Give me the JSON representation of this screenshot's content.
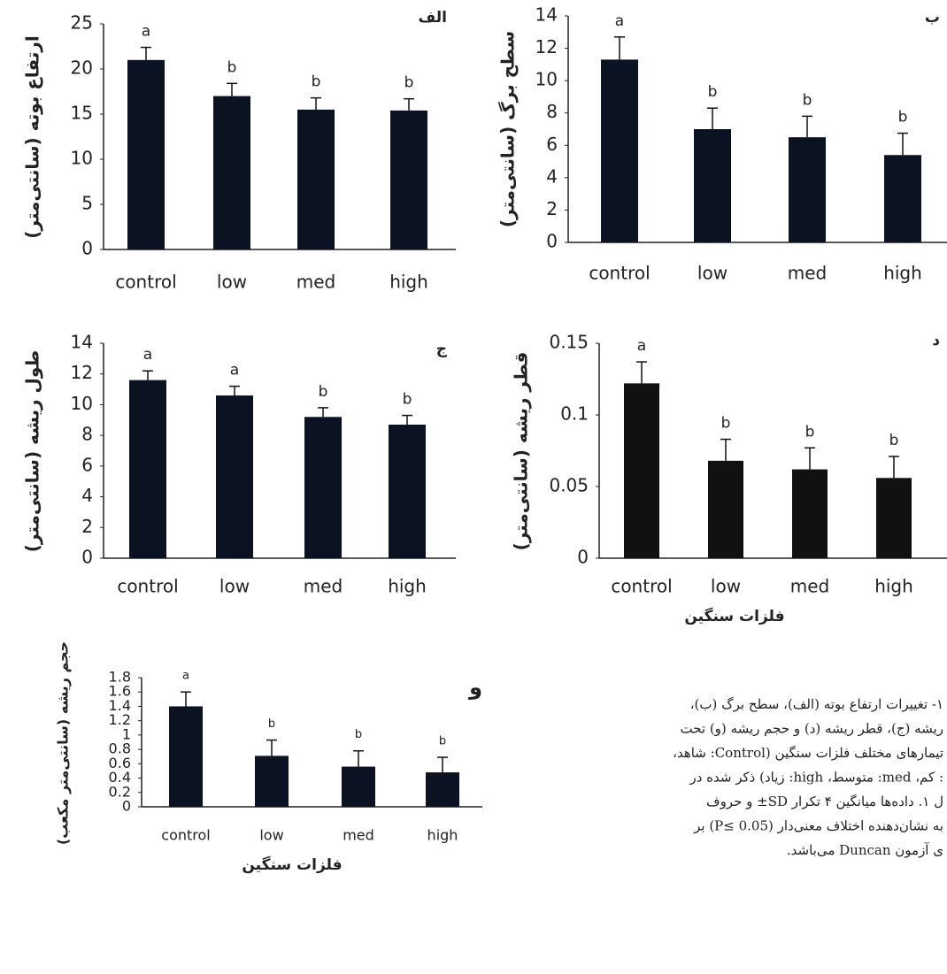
{
  "chart_data": [
    {
      "type": "bar",
      "panel_label": "الف",
      "ylabel": "ارتفاع بوته (سانتی‌متر)",
      "categories": [
        "control",
        "low",
        "med",
        "high"
      ],
      "values": [
        21,
        17,
        15.5,
        15.4
      ],
      "errors": [
        1.4,
        1.4,
        1.3,
        1.3
      ],
      "letters": [
        "a",
        "b",
        "b",
        "b"
      ],
      "color": "#0b1322",
      "ylim": [
        0,
        25
      ],
      "yticks": [
        0,
        5,
        10,
        15,
        20,
        25
      ]
    },
    {
      "type": "bar",
      "panel_label": "ب",
      "ylabel": "سطح برگ (سانتی‌متر)",
      "categories": [
        "control",
        "low",
        "med",
        "high"
      ],
      "values": [
        11.3,
        7,
        6.5,
        5.4
      ],
      "errors": [
        1.4,
        1.3,
        1.3,
        1.35
      ],
      "letters": [
        "a",
        "b",
        "b",
        "b"
      ],
      "color": "#0b1322",
      "ylim": [
        0,
        14
      ],
      "yticks": [
        0,
        2,
        4,
        6,
        8,
        10,
        12,
        14
      ]
    },
    {
      "type": "bar",
      "panel_label": "ج",
      "ylabel": "طول ریشه (سانتی‌متر)",
      "categories": [
        "control",
        "low",
        "med",
        "high"
      ],
      "values": [
        11.6,
        10.6,
        9.2,
        8.7
      ],
      "errors": [
        0.6,
        0.6,
        0.6,
        0.6
      ],
      "letters": [
        "a",
        "a",
        "b",
        "b"
      ],
      "color": "#0b1322",
      "ylim": [
        0,
        14
      ],
      "yticks": [
        0,
        2,
        4,
        6,
        8,
        10,
        12,
        14
      ]
    },
    {
      "type": "bar",
      "panel_label": "د",
      "ylabel": "قطر ریشه (سانتی‌متر)",
      "xlabel": "فلزات سنگین",
      "categories": [
        "control",
        "low",
        "med",
        "high"
      ],
      "values": [
        0.122,
        0.068,
        0.062,
        0.056
      ],
      "errors": [
        0.015,
        0.015,
        0.015,
        0.015
      ],
      "letters": [
        "a",
        "b",
        "b",
        "b"
      ],
      "color": "#111111",
      "ylim": [
        0,
        0.15
      ],
      "yticks": [
        0,
        0.05,
        0.1,
        0.15
      ]
    },
    {
      "type": "bar",
      "panel_label": "و",
      "ylabel": "حجم ریشه (سانتی‌متر مکعب)",
      "xlabel": "فلزات سنگین",
      "categories": [
        "control",
        "low",
        "med",
        "high"
      ],
      "values": [
        1.4,
        0.71,
        0.56,
        0.48
      ],
      "errors": [
        0.2,
        0.22,
        0.22,
        0.21
      ],
      "letters": [
        "a",
        "b",
        "b",
        "b"
      ],
      "color": "#0b1322",
      "ylim": [
        0,
        1.8
      ],
      "yticks": [
        0,
        0.2,
        0.4,
        0.6,
        0.8,
        1,
        1.2,
        1.4,
        1.6,
        1.8
      ]
    }
  ],
  "caption": [
    "۱- تغییرات ارتفاع بوته (الف)، سطح برگ (ب)،",
    "ریشه (ج)، قطر ریشه (د) و حجم ریشه (و) تحت",
    "تیمارهای مختلف فلزات سنگین (Control: شاهد،",
    ": کم، med: متوسط، high: زیاد) ذکر شده در",
    "ل ۱. داده‌ها میانگین ۴ تکرار SD± و حروف",
    "به نشان‌دهنده اختلاف معنی‌دار (P≤ 0.05) بر",
    "ی آزمون Duncan می‌باشد."
  ]
}
